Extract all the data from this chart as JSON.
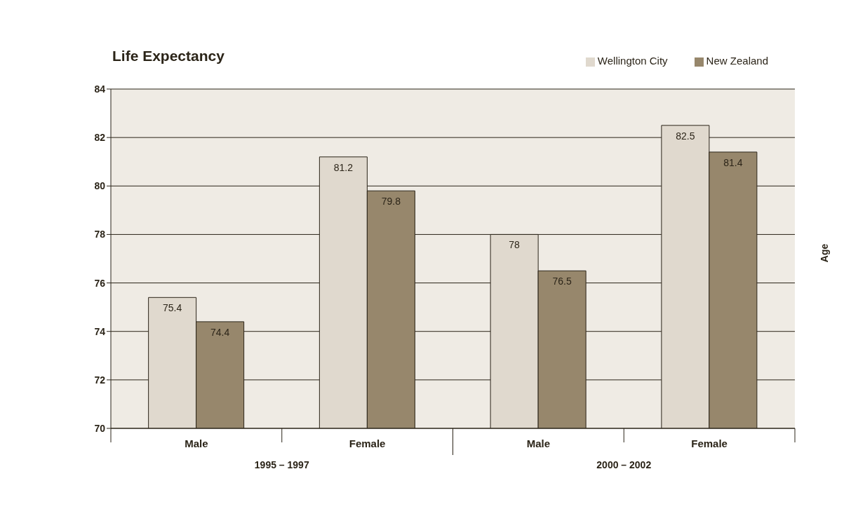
{
  "chart_data": {
    "type": "bar",
    "title": "Life Expectancy",
    "ylabel": "Age",
    "categories": [
      "Male",
      "Female",
      "Male",
      "Female"
    ],
    "series": [
      {
        "name": "Wellington City",
        "color": "#e0d9ce",
        "values": [
          75.4,
          81.2,
          78,
          82.5
        ]
      },
      {
        "name": "New Zealand",
        "color": "#97876c",
        "values": [
          74.4,
          79.8,
          76.5,
          81.4
        ]
      }
    ],
    "annotations": [
      "1995 – 1997",
      "2000 – 2002"
    ],
    "ylim": [
      70,
      84
    ],
    "yticks": [
      70,
      72,
      74,
      76,
      78,
      80,
      82,
      84
    ],
    "grid": "y",
    "legend": "top right",
    "data_labels": true
  }
}
